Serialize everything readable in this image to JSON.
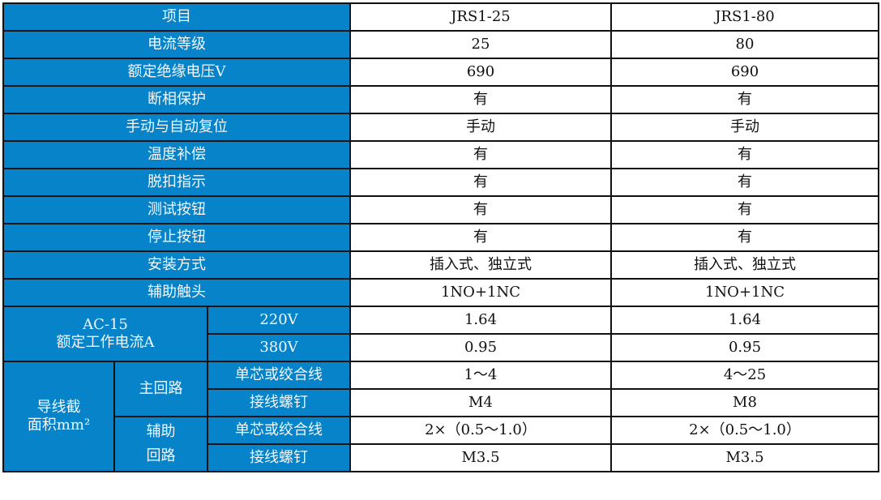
{
  "header": {
    "item": "项目",
    "models": [
      "JRS1-25",
      "JRS1-80"
    ]
  },
  "rows": [
    {
      "label": "电流等级",
      "values": [
        "25",
        "80"
      ]
    },
    {
      "label": "额定绝缘电压V",
      "values": [
        "690",
        "690"
      ]
    },
    {
      "label": "断相保护",
      "values": [
        "有",
        "有"
      ]
    },
    {
      "label": "手动与自动复位",
      "values": [
        "手动",
        "手动"
      ]
    },
    {
      "label": "温度补偿",
      "values": [
        "有",
        "有"
      ]
    },
    {
      "label": "脱扣指示",
      "values": [
        "有",
        "有"
      ]
    },
    {
      "label": "测试按钮",
      "values": [
        "有",
        "有"
      ]
    },
    {
      "label": "停止按钮",
      "values": [
        "有",
        "有"
      ]
    },
    {
      "label": "安装方式",
      "values": [
        "插入式、独立式",
        "插入式、独立式"
      ]
    },
    {
      "label": "辅助触头",
      "values": [
        "1NO+1NC",
        "1NO+1NC"
      ]
    }
  ],
  "ac15": {
    "label_line1": "AC-15",
    "label_line2": "额定工作电流A",
    "rows": [
      {
        "voltage": "220V",
        "values": [
          "1.64",
          "1.64"
        ]
      },
      {
        "voltage": "380V",
        "values": [
          "0.95",
          "0.95"
        ]
      }
    ]
  },
  "wire": {
    "label_line1": "导线截",
    "label_line2": "面积mm²",
    "main": {
      "label": "主回路",
      "rows": [
        {
          "type": "单芯或绞合线",
          "values": [
            "1～4",
            "4～25"
          ]
        },
        {
          "type": "接线螺钉",
          "values": [
            "M4",
            "M8"
          ]
        }
      ]
    },
    "aux": {
      "label_line1": "辅助",
      "label_line2": "回路",
      "rows": [
        {
          "type": "单芯或绞合线",
          "values": [
            "2×（0.5～1.0）",
            "2×（0.5～1.0）"
          ]
        },
        {
          "type": "接线螺钉",
          "values": [
            "M3.5",
            "M3.5"
          ]
        }
      ]
    }
  }
}
